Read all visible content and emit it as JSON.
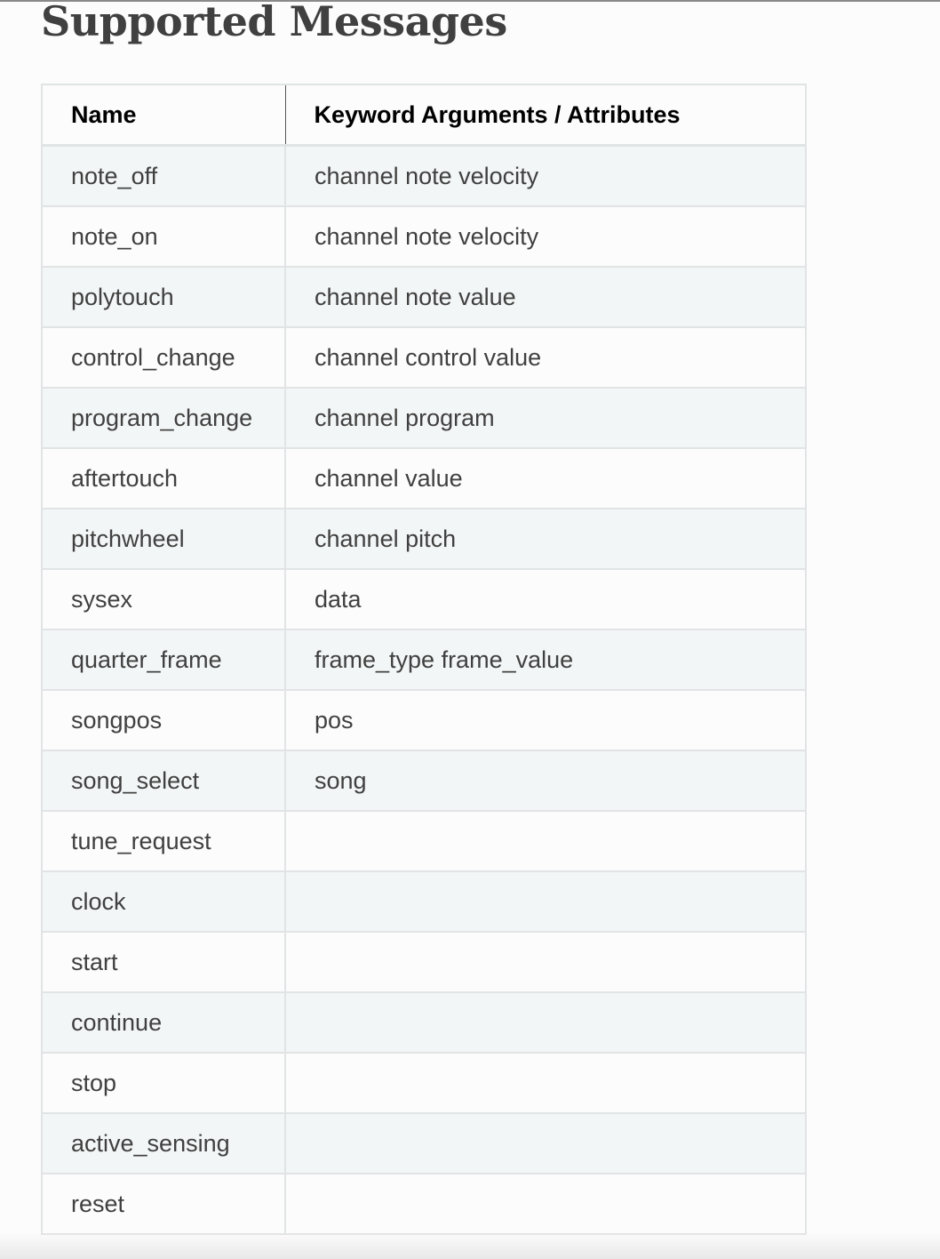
{
  "page": {
    "title": "Supported Messages"
  },
  "table": {
    "headers": [
      "Name",
      "Keyword Arguments / Attributes"
    ],
    "rows": [
      {
        "name": "note_off",
        "args": "channel note velocity"
      },
      {
        "name": "note_on",
        "args": "channel note velocity"
      },
      {
        "name": "polytouch",
        "args": "channel note value"
      },
      {
        "name": "control_change",
        "args": "channel control value"
      },
      {
        "name": "program_change",
        "args": "channel program"
      },
      {
        "name": "aftertouch",
        "args": "channel value"
      },
      {
        "name": "pitchwheel",
        "args": "channel pitch"
      },
      {
        "name": "sysex",
        "args": "data"
      },
      {
        "name": "quarter_frame",
        "args": "frame_type frame_value"
      },
      {
        "name": "songpos",
        "args": "pos"
      },
      {
        "name": "song_select",
        "args": "song"
      },
      {
        "name": "tune_request",
        "args": ""
      },
      {
        "name": "clock",
        "args": ""
      },
      {
        "name": "start",
        "args": ""
      },
      {
        "name": "continue",
        "args": ""
      },
      {
        "name": "stop",
        "args": ""
      },
      {
        "name": "active_sensing",
        "args": ""
      },
      {
        "name": "reset",
        "args": ""
      }
    ]
  },
  "colors": {
    "text": "#404040",
    "header_text": "#000000",
    "stripe": "#f3f6f6",
    "background": "#fcfcfc",
    "border": "#e1e4e5"
  }
}
